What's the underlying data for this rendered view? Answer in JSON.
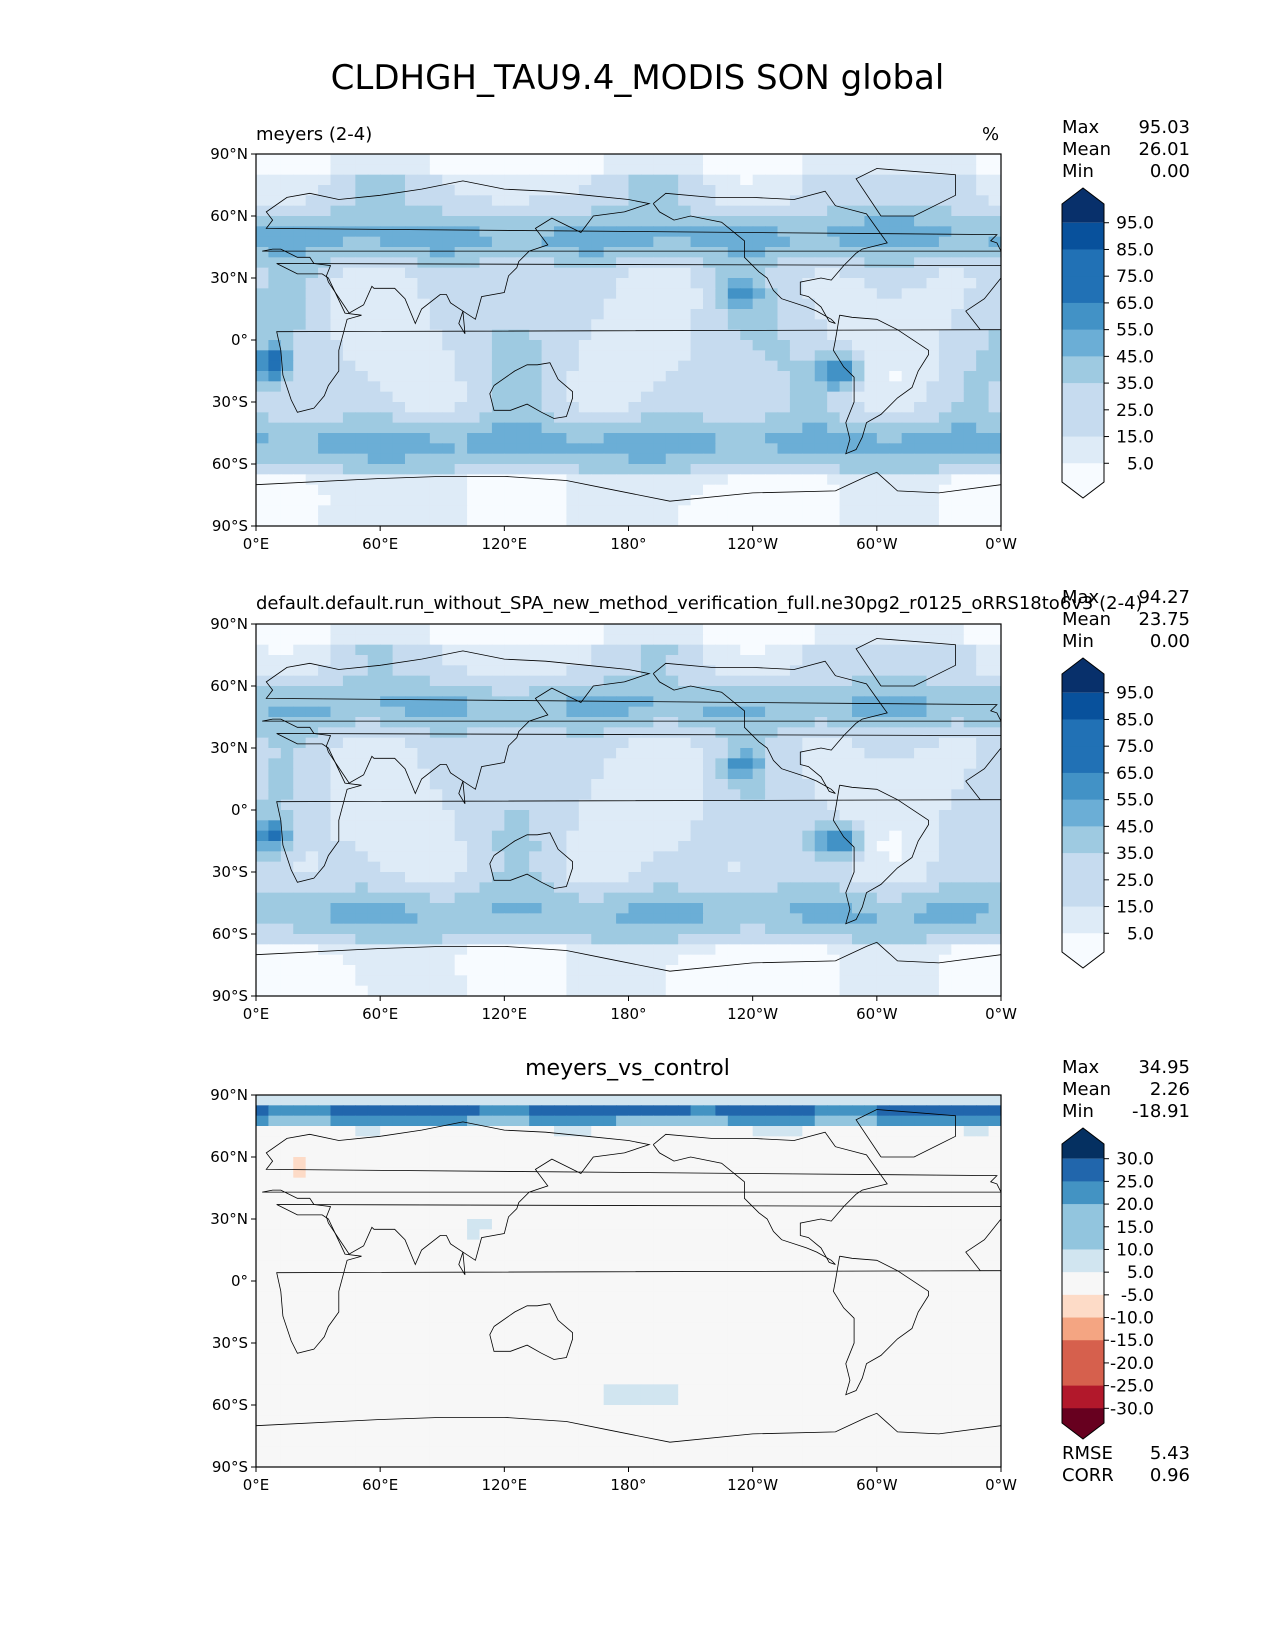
{
  "title": "CLDHGH_TAU9.4_MODIS SON global",
  "panels": [
    {
      "id": "test",
      "left_title": "meyers (2-4)",
      "center_title": "",
      "units": "%",
      "stats": {
        "max_label": "Max",
        "max": "95.03",
        "mean_label": "Mean",
        "mean": "26.01",
        "min_label": "Min",
        "min": "0.00"
      },
      "colorbar": {
        "labels": [
          "95.0",
          "85.0",
          "75.0",
          "65.0",
          "55.0",
          "45.0",
          "35.0",
          "25.0",
          "15.0",
          "5.0"
        ]
      }
    },
    {
      "id": "ref",
      "left_title": "default.default.run_without_SPA_new_method_verification_full.ne30pg2_r0125_oRRS18to6v3 (2-4)",
      "center_title": "",
      "units": "%",
      "stats": {
        "max_label": "Max",
        "max": "94.27",
        "mean_label": "Mean",
        "mean": "23.75",
        "min_label": "Min",
        "min": "0.00"
      },
      "colorbar": {
        "labels": [
          "95.0",
          "85.0",
          "75.0",
          "65.0",
          "55.0",
          "45.0",
          "35.0",
          "25.0",
          "15.0",
          "5.0"
        ]
      }
    },
    {
      "id": "diff",
      "left_title": "",
      "center_title": "meyers_vs_control",
      "units": "",
      "stats": {
        "max_label": "Max",
        "max": "34.95",
        "mean_label": "Mean",
        "mean": "2.26",
        "min_label": "Min",
        "min": "-18.91"
      },
      "extra_stats": {
        "rmse_label": "RMSE",
        "rmse": "5.43",
        "corr_label": "CORR",
        "corr": "0.96"
      },
      "colorbar": {
        "labels": [
          "30.0",
          "25.0",
          "20.0",
          "15.0",
          "10.0",
          "5.0",
          "-5.0",
          "-10.0",
          "-15.0",
          "-20.0",
          "-25.0",
          "-30.0"
        ]
      }
    }
  ],
  "axes": {
    "lat_ticks": [
      "90°N",
      "60°N",
      "30°N",
      "0°",
      "30°S",
      "60°S",
      "90°S"
    ],
    "lon_ticks": [
      "0°E",
      "60°E",
      "120°E",
      "180°",
      "120°W",
      "60°W",
      "0°W"
    ]
  },
  "colors": {
    "blues": [
      "#f7fbff",
      "#deebf7",
      "#c6dbef",
      "#9ecae1",
      "#6baed6",
      "#4292c6",
      "#2171b5",
      "#08519c",
      "#08306b"
    ],
    "diverging": [
      "#67001f",
      "#b2182b",
      "#d6604d",
      "#f4a582",
      "#fddbc7",
      "#f7f7f7",
      "#d1e5f0",
      "#92c5de",
      "#4393c3",
      "#2166ac",
      "#053061"
    ]
  },
  "chart_data": [
    {
      "type": "heatmap",
      "title": "meyers (2-4)",
      "units": "%",
      "x_axis": "longitude",
      "y_axis": "latitude",
      "xlim": [
        0,
        360
      ],
      "ylim": [
        -90,
        90
      ],
      "color_levels": [
        5,
        15,
        25,
        35,
        45,
        55,
        65,
        75,
        85,
        95
      ],
      "max": 95.03,
      "mean": 26.01,
      "min": 0.0
    },
    {
      "type": "heatmap",
      "title": "default.default.run_without_SPA_new_method_verification_full.ne30pg2_r0125_oRRS18to6v3 (2-4)",
      "units": "%",
      "x_axis": "longitude",
      "y_axis": "latitude",
      "xlim": [
        0,
        360
      ],
      "ylim": [
        -90,
        90
      ],
      "color_levels": [
        5,
        15,
        25,
        35,
        45,
        55,
        65,
        75,
        85,
        95
      ],
      "max": 94.27,
      "mean": 23.75,
      "min": 0.0
    },
    {
      "type": "heatmap",
      "title": "meyers_vs_control",
      "x_axis": "longitude",
      "y_axis": "latitude",
      "xlim": [
        0,
        360
      ],
      "ylim": [
        -90,
        90
      ],
      "color_levels": [
        -30,
        -25,
        -20,
        -15,
        -10,
        -5,
        5,
        10,
        15,
        20,
        25,
        30
      ],
      "max": 34.95,
      "mean": 2.26,
      "min": -18.91,
      "rmse": 5.43,
      "corr": 0.96
    }
  ]
}
